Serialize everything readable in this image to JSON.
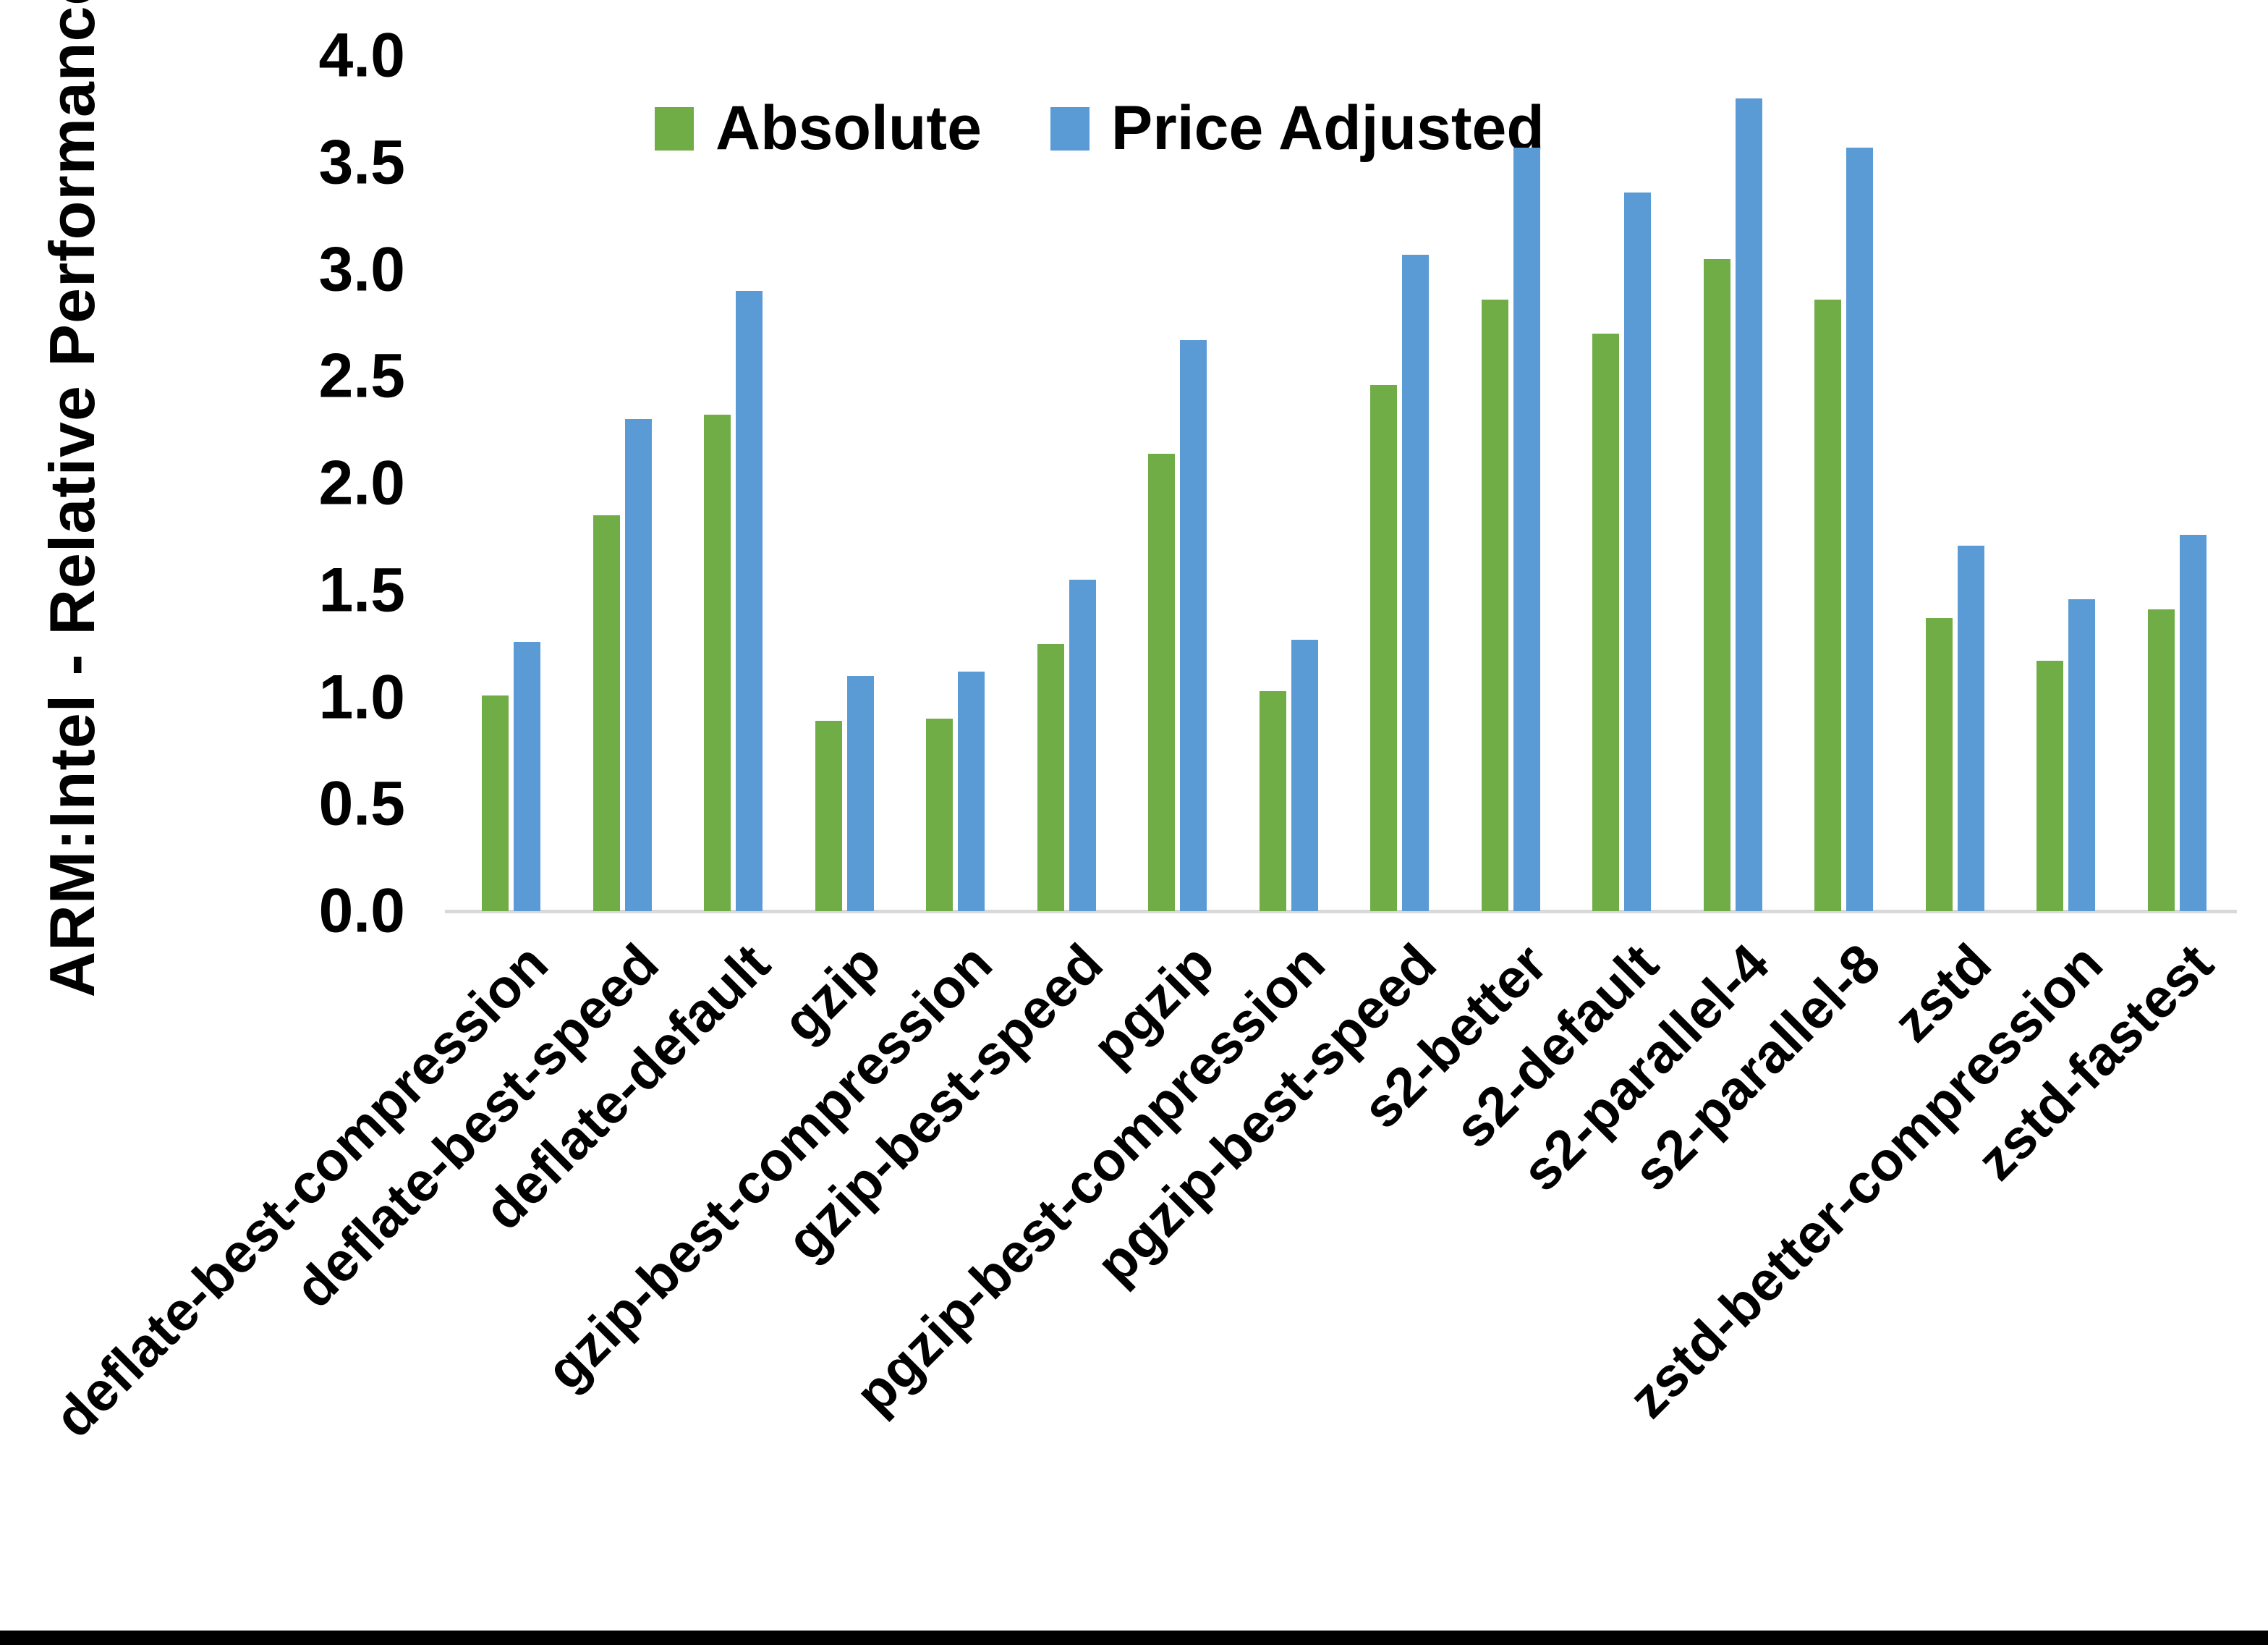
{
  "chart_data": {
    "type": "bar",
    "title": "",
    "xlabel": "",
    "ylabel": "ARM:Intel - Relative Performance",
    "ylim": [
      0.0,
      4.0
    ],
    "ytick_step": 0.5,
    "ytick_labels": [
      "0.0",
      "0.5",
      "1.0",
      "1.5",
      "2.0",
      "2.5",
      "3.0",
      "3.5",
      "4.0"
    ],
    "grid": false,
    "legend_position": "top-center",
    "background_color": "#ffffff",
    "axis_line_color": "#d9d9d9",
    "text_color": "#000000",
    "categories": [
      "deflate-best-compression",
      "deflate-best-speed",
      "deflate-default",
      "gzip",
      "gzip-best-compression",
      "gzip-best-speed",
      "pgzip",
      "pgzip-best-compression",
      "pgzip-best-speed",
      "s2-better",
      "s2-default",
      "s2-parallel-4",
      "s2-parallel-8",
      "zstd",
      "zstd-better-compression",
      "zstd-fastest"
    ],
    "series": [
      {
        "name": "Absolute",
        "color": "#70AD47",
        "values": [
          1.01,
          1.85,
          2.32,
          0.89,
          0.9,
          1.25,
          2.14,
          1.03,
          2.46,
          2.86,
          2.7,
          3.05,
          2.86,
          1.37,
          1.17,
          1.41
        ]
      },
      {
        "name": "Price Adjusted",
        "color": "#5B9BD5",
        "values": [
          1.26,
          2.3,
          2.9,
          1.1,
          1.12,
          1.55,
          2.67,
          1.27,
          3.07,
          3.57,
          3.36,
          3.8,
          3.57,
          1.71,
          1.46,
          1.76
        ]
      }
    ]
  }
}
